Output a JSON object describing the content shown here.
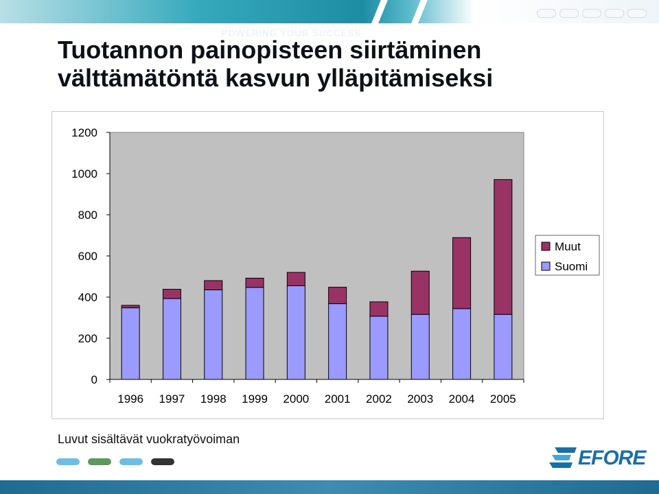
{
  "header": {
    "tagline": "POWERING YOUR SUCCESS",
    "title_line1": "Tuotannon painopisteen siirtäminen",
    "title_line2": "välttämätöntä kasvun ylläpitämiseksi"
  },
  "colors": {
    "suomi": "#9a9aff",
    "muut": "#993366",
    "plot_bg": "#c0c0c0",
    "dots": [
      "#6cbde6",
      "#5a9a5a",
      "#6cbde6",
      "#333333"
    ]
  },
  "footnote": "Luvut sisältävät vuokratyövoiman",
  "logo": {
    "name": "efore-logo",
    "text": "EFORE"
  },
  "chart_data": {
    "type": "bar",
    "stacked": true,
    "categories": [
      "1996",
      "1997",
      "1998",
      "1999",
      "2000",
      "2001",
      "2002",
      "2003",
      "2004",
      "2005"
    ],
    "series": [
      {
        "name": "Suomi",
        "color": "#9a9aff",
        "values": [
          348,
          393,
          435,
          447,
          455,
          368,
          307,
          316,
          344,
          316
        ]
      },
      {
        "name": "Muut",
        "color": "#993366",
        "values": [
          12,
          45,
          45,
          45,
          65,
          80,
          70,
          210,
          345,
          655
        ]
      }
    ],
    "ylim": [
      0,
      1200
    ],
    "yticks": [
      "0",
      "200",
      "400",
      "600",
      "800",
      "1000",
      "1200"
    ],
    "grid": false,
    "legend": "right"
  }
}
